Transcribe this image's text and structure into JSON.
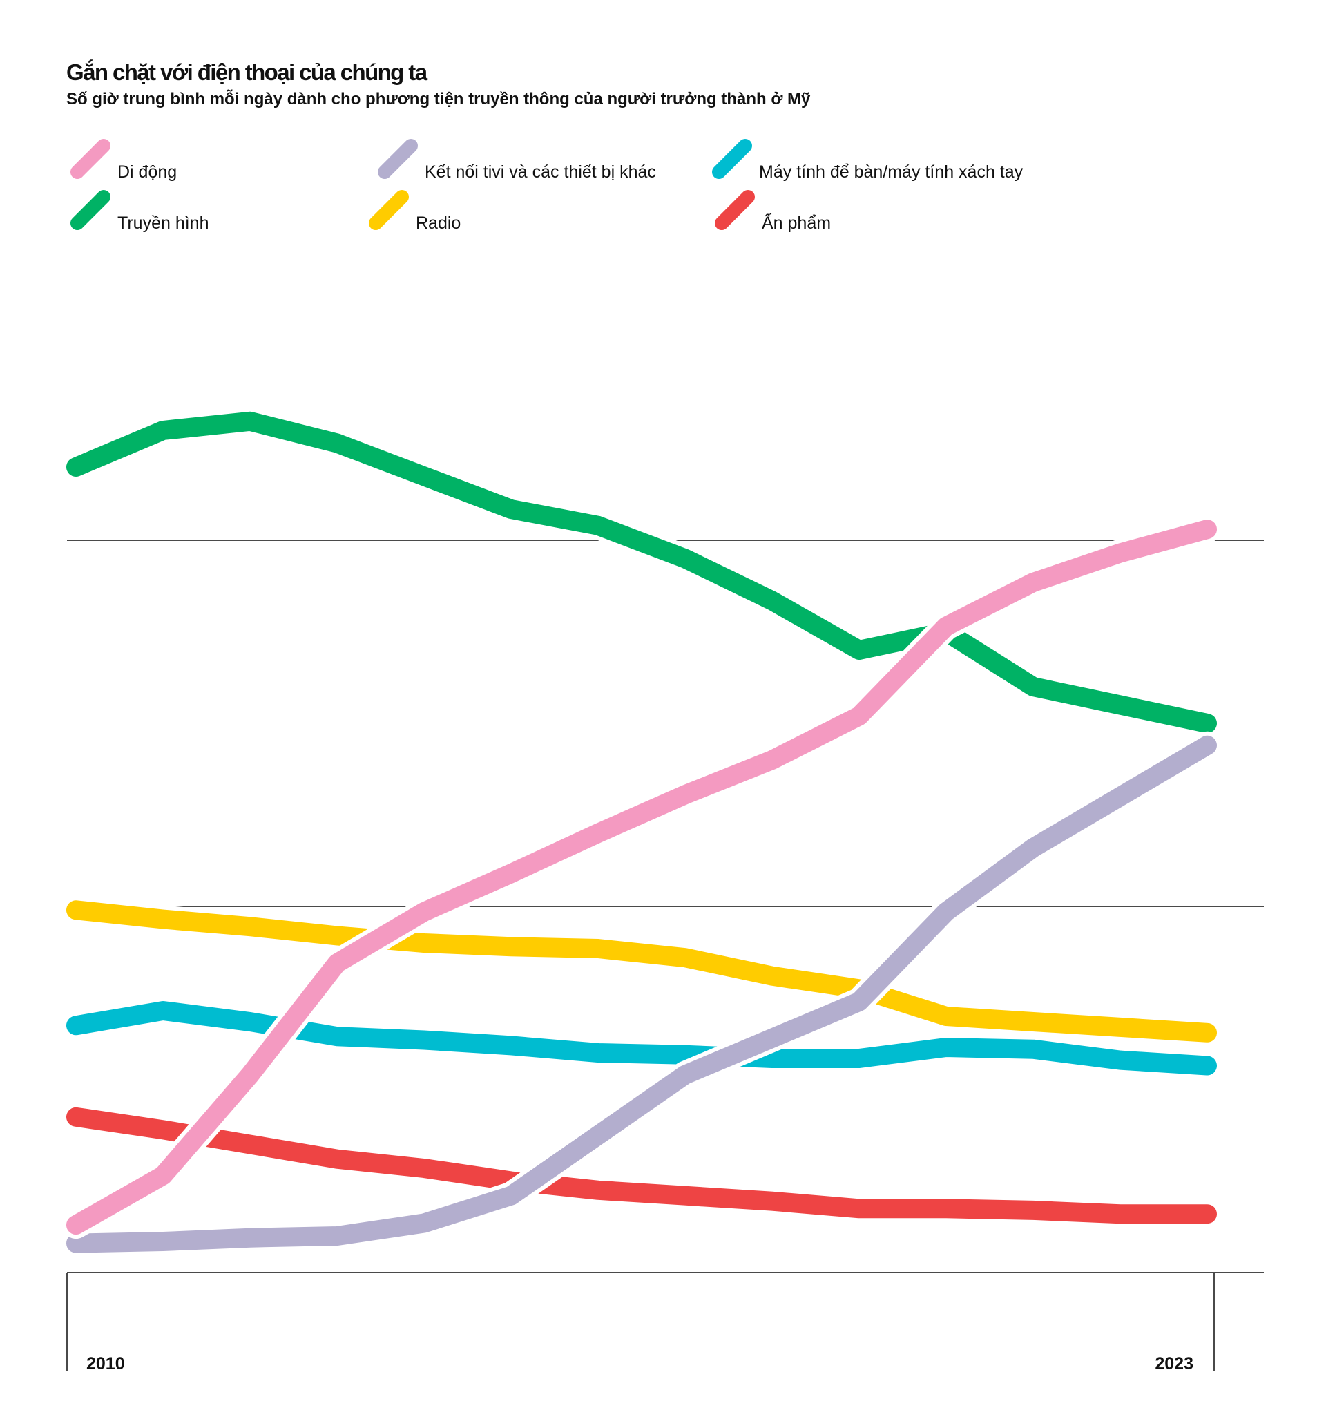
{
  "title": "Gắn chặt với điện thoại của chúng ta",
  "subtitle": "Số giờ trung bình mỗi ngày dành cho phương tiện truyền thông của người trưởng thành ở Mỹ",
  "legend": [
    {
      "label": "Di động",
      "color": "#f49ac1"
    },
    {
      "label": "Kết nối tivi và các thiết bị khác",
      "color": "#b3aece"
    },
    {
      "label": "Máy tính để bàn/máy tính xách tay",
      "color": "#00bcd0"
    },
    {
      "label": "Truyền hình",
      "color": "#00b265"
    },
    {
      "label": "Radio",
      "color": "#ffcc00"
    },
    {
      "label": "Ấn phẩm",
      "color": "#ee4444"
    }
  ],
  "chart_data": {
    "type": "line",
    "title": "Gắn chặt với điện thoại của chúng ta",
    "subtitle": "Số giờ trung bình mỗi ngày dành cho phương tiện truyền thông của người trưởng thành ở Mỹ",
    "x": [
      2010,
      2011,
      2012,
      2013,
      2014,
      2015,
      2016,
      2017,
      2018,
      2019,
      2020,
      2021,
      2022,
      2023
    ],
    "x_tick_labels": [
      "2010",
      "2023"
    ],
    "ylim": [
      0,
      5
    ],
    "gridlines_y": [
      0,
      2,
      4
    ],
    "series": [
      {
        "name": "Truyền hình",
        "color": "#00b265",
        "values": [
          4.4,
          4.6,
          4.65,
          4.53,
          4.35,
          4.17,
          4.08,
          3.9,
          3.67,
          3.4,
          3.5,
          3.2,
          3.1,
          3.0
        ]
      },
      {
        "name": "Radio",
        "color": "#ffcc00",
        "values": [
          1.98,
          1.93,
          1.89,
          1.84,
          1.8,
          1.78,
          1.77,
          1.72,
          1.62,
          1.55,
          1.4,
          1.37,
          1.34,
          1.31
        ]
      },
      {
        "name": "Máy tính để bàn/máy tính xách tay",
        "color": "#00bcd0",
        "values": [
          1.35,
          1.43,
          1.37,
          1.29,
          1.27,
          1.24,
          1.2,
          1.19,
          1.17,
          1.17,
          1.23,
          1.22,
          1.16,
          1.13
        ]
      },
      {
        "name": "Ấn phẩm",
        "color": "#ee4444",
        "values": [
          0.85,
          0.78,
          0.7,
          0.62,
          0.57,
          0.5,
          0.45,
          0.42,
          0.39,
          0.35,
          0.35,
          0.34,
          0.32,
          0.32
        ]
      },
      {
        "name": "Kết nối tivi và các thiết bị khác",
        "color": "#b3aece",
        "values": [
          0.16,
          0.17,
          0.19,
          0.2,
          0.27,
          0.42,
          0.75,
          1.08,
          1.28,
          1.48,
          1.97,
          2.32,
          2.6,
          2.88
        ]
      },
      {
        "name": "Di động",
        "color": "#f49ac1",
        "values": [
          0.26,
          0.53,
          1.08,
          1.69,
          1.97,
          2.18,
          2.4,
          2.61,
          2.8,
          3.04,
          3.53,
          3.77,
          3.93,
          4.06
        ]
      }
    ]
  }
}
